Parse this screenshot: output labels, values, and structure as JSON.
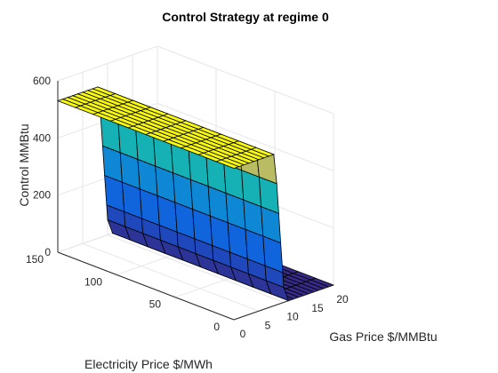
{
  "chart_data": {
    "type": "surface",
    "title": "Control Strategy at regime 0",
    "xlabel": "Gas Price $/MMBtu",
    "ylabel": "Electricity Price $/MWh",
    "zlabel": "Control MMBtu",
    "x_ticks": [
      "0",
      "5",
      "10",
      "15",
      "20"
    ],
    "y_ticks": [
      "0",
      "50",
      "100",
      "150"
    ],
    "z_ticks": [
      "0",
      "200",
      "400",
      "600"
    ],
    "xlim": [
      0,
      20
    ],
    "ylim": [
      0,
      150
    ],
    "zlim": [
      0,
      600
    ],
    "grid": true,
    "colormap": "parula",
    "colors": {
      "high": "#f9fb0e",
      "low": "#352a87",
      "edge": "#000000"
    },
    "x": [
      0,
      10,
      20
    ],
    "y": [
      0,
      75,
      150
    ],
    "z": [
      [
        0,
        0,
        0
      ],
      [
        530,
        530,
        0
      ],
      [
        530,
        530,
        530
      ]
    ],
    "description_values": {
      "max_control": 530,
      "min_control": 0
    }
  }
}
